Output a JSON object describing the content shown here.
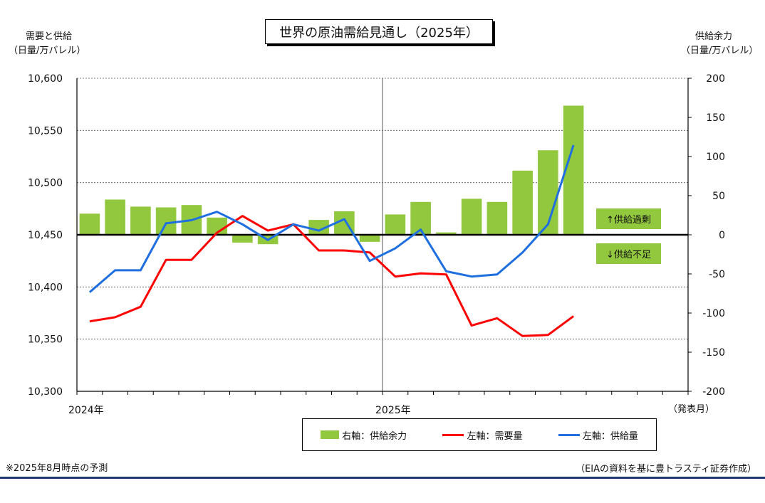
{
  "title": "世界の原油需給見通し（2025年）",
  "left_axis_title": {
    "line1": "需要と供給",
    "line2": "（日量/万バレル）"
  },
  "right_axis_title": {
    "line1": "供給余力",
    "line2": "（日量/万バレル）"
  },
  "x_unit_label": "（発表月）",
  "callout_surplus": "↑供給過剰",
  "callout_shortage": "↓供給不足",
  "note_left": "※2025年8月時点の予測",
  "note_right": "（EIAの資料を基に豊トラスティ証券作成）",
  "colors": {
    "bar": "#92c83e",
    "demand": "#ff0000",
    "supply": "#1f6fe0",
    "bottom_rule": "#1f3a6e"
  },
  "chart_data": {
    "type": "bar+line",
    "x_tick_labels": [
      "2024年",
      "2025年"
    ],
    "x": [
      "2024-01",
      "2024-02",
      "2024-03",
      "2024-04",
      "2024-05",
      "2024-06",
      "2024-07",
      "2024-08",
      "2024-09",
      "2024-10",
      "2024-11",
      "2024-12",
      "2025-01",
      "2025-02",
      "2025-03",
      "2025-04",
      "2025-05",
      "2025-06",
      "2025-07",
      "2025-08"
    ],
    "left_axis": {
      "ylim": [
        10300,
        10600
      ],
      "ticks": [
        "10,300",
        "10,350",
        "10,400",
        "10,450",
        "10,500",
        "10,550",
        "10,600"
      ]
    },
    "right_axis": {
      "ylim": [
        -200,
        200
      ],
      "ticks": [
        "-200",
        "-150",
        "-100",
        "-50",
        "0",
        "50",
        "100",
        "150",
        "200"
      ]
    },
    "series": [
      {
        "name": "右軸：供給余力",
        "type": "bar",
        "axis": "right",
        "values": [
          27,
          45,
          36,
          35,
          38,
          22,
          -10,
          -12,
          0,
          19,
          30,
          -9,
          26,
          42,
          3,
          46,
          42,
          82,
          108,
          165
        ]
      },
      {
        "name": "左軸：需要量",
        "type": "line",
        "axis": "left",
        "values": [
          10367,
          10371,
          10381,
          10426,
          10426,
          10452,
          10468,
          10454,
          10460,
          10435,
          10435,
          10433,
          10410,
          10413,
          10412,
          10363,
          10370,
          10353,
          10354,
          10372
        ]
      },
      {
        "name": "左軸：供給量",
        "type": "line",
        "axis": "left",
        "values": [
          10395,
          10416,
          10416,
          10461,
          10464,
          10472,
          10460,
          10445,
          10460,
          10454,
          10465,
          10425,
          10437,
          10455,
          10415,
          10410,
          10412,
          10433,
          10460,
          10536
        ]
      }
    ],
    "grid": true
  }
}
